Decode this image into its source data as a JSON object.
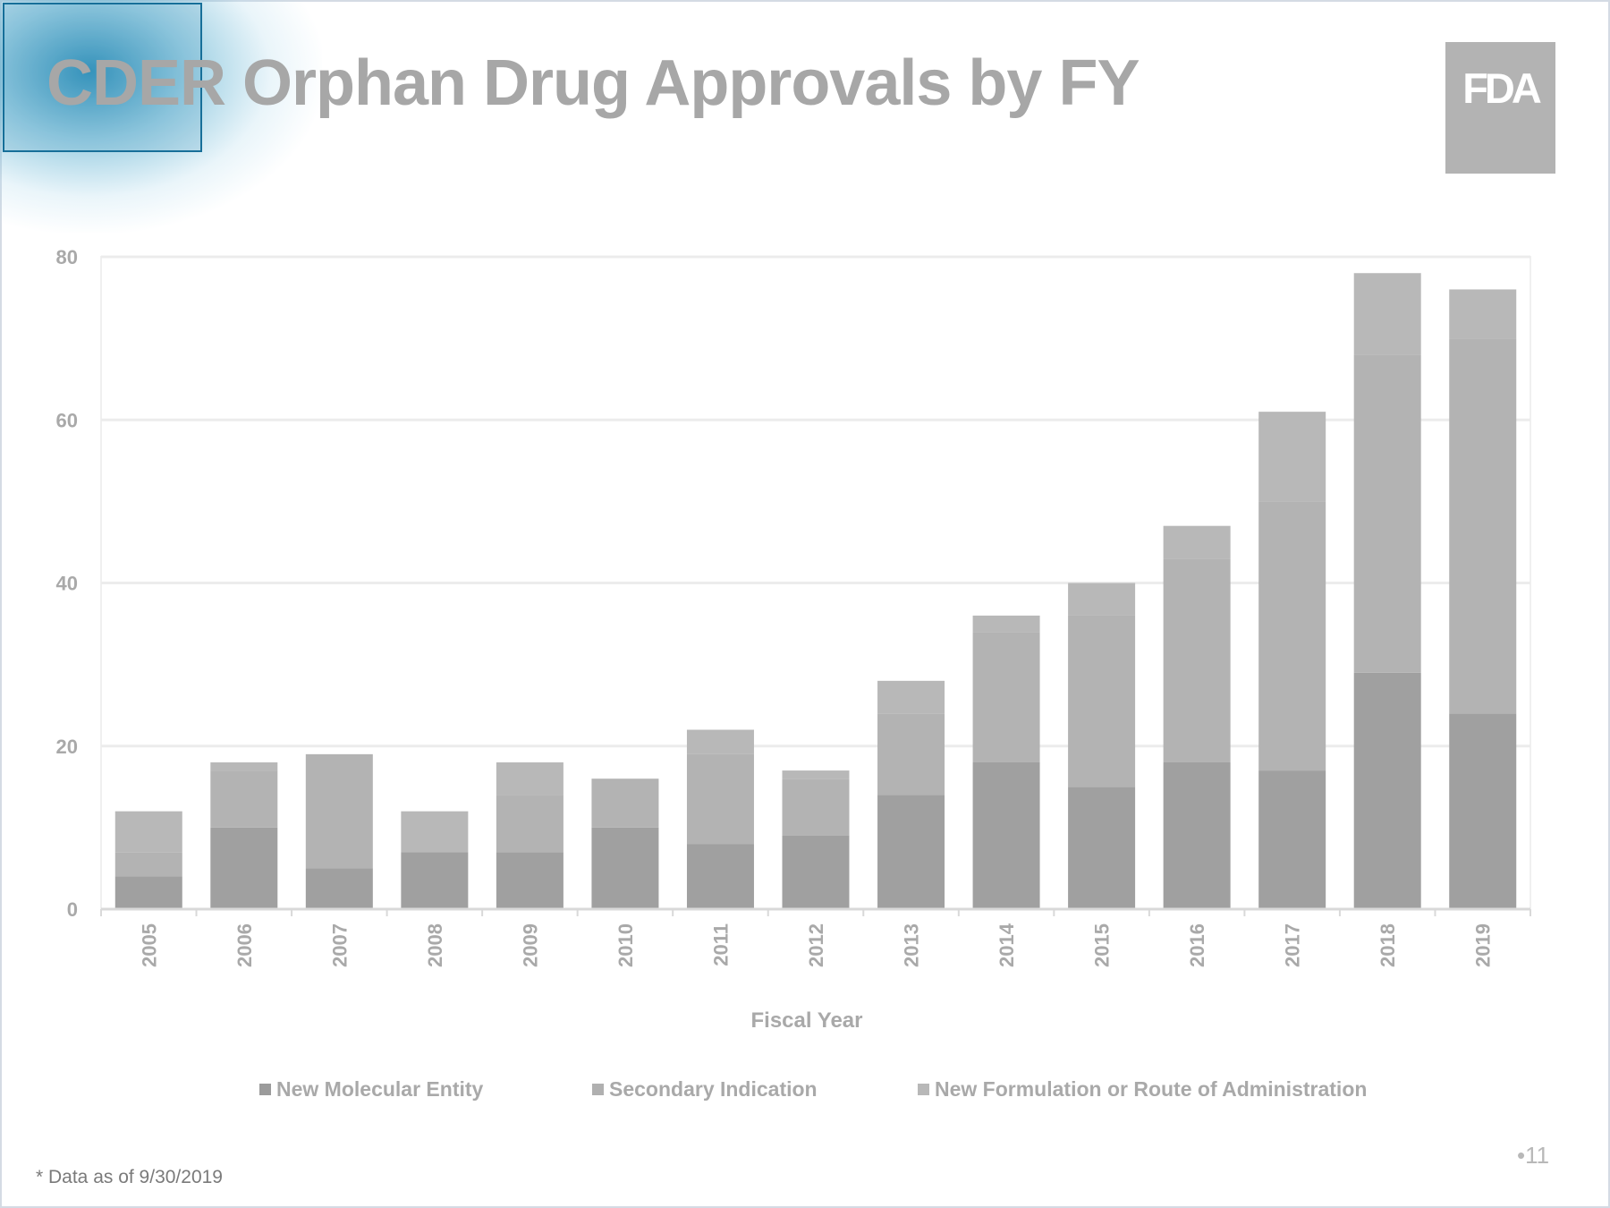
{
  "slide": {
    "title": "CDER Orphan Drug Approvals by FY",
    "logo_text": "FDA",
    "footnote": "* Data as of 9/30/2019",
    "page_number": "•11"
  },
  "colors": {
    "background": "#ffffff",
    "accent": "#1784b2",
    "text_gray": "#a9a9a9",
    "gridline": "#ececec"
  },
  "chart_data": {
    "type": "bar",
    "stacked": true,
    "title": "",
    "xlabel": "Fiscal Year",
    "ylabel": "",
    "ylim": [
      0,
      80
    ],
    "yticks": [
      0,
      20,
      40,
      60,
      80
    ],
    "grid": true,
    "legend_position": "bottom",
    "categories": [
      "2005",
      "2006",
      "2007",
      "2008",
      "2009",
      "2010",
      "2011",
      "2012",
      "2013",
      "2014",
      "2015",
      "2016",
      "2017",
      "2018",
      "2019"
    ],
    "series": [
      {
        "name": "New Molecular Entity",
        "color": "#a0a0a0",
        "values": [
          4,
          10,
          5,
          7,
          7,
          10,
          8,
          9,
          14,
          18,
          15,
          18,
          17,
          29,
          24
        ]
      },
      {
        "name": "Secondary Indication",
        "color": "#b3b3b3",
        "values": [
          3,
          7,
          14,
          0,
          7,
          6,
          11,
          7,
          10,
          16,
          21,
          25,
          33,
          39,
          46
        ]
      },
      {
        "name": "New Formulation or Route of Administration",
        "color": "#b8b8b8",
        "values": [
          5,
          1,
          0,
          5,
          4,
          0,
          3,
          1,
          4,
          2,
          4,
          4,
          11,
          10,
          6
        ]
      }
    ]
  }
}
